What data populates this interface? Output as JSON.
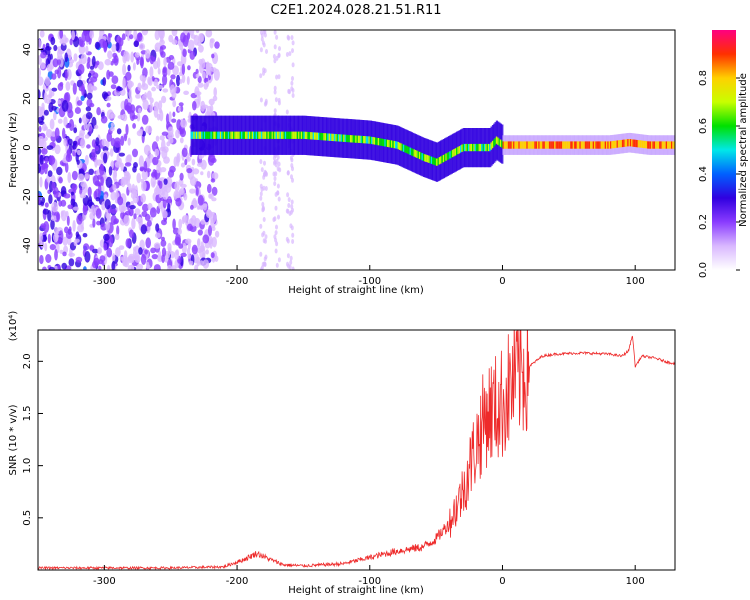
{
  "chart_data": [
    {
      "type": "heatmap",
      "title": "C2E1.2024.028.21.51.R11",
      "xlabel": "Height of straight line (km)",
      "ylabel": "Frequency (Hz)",
      "xlim": [
        -350,
        130
      ],
      "ylim": [
        -50,
        48
      ],
      "x_ticks": [
        -300,
        -200,
        -100,
        0,
        100
      ],
      "y_ticks": [
        -40,
        -20,
        0,
        20,
        40
      ],
      "colorbar": {
        "label": "Normalized spectral amplitude",
        "range": [
          0,
          1
        ],
        "ticks": [
          0.0,
          0.2,
          0.4,
          0.6,
          0.8
        ],
        "colors": [
          "#ffffff",
          "#d9b8ff",
          "#8a3cff",
          "#3000e0",
          "#0060ff",
          "#00e8e8",
          "#00e000",
          "#c8ff00",
          "#ffd000",
          "#ff3000",
          "#ff0080"
        ]
      },
      "ridge": {
        "x": [
          -235,
          -200,
          -150,
          -100,
          -80,
          -60,
          -50,
          -40,
          -30,
          -20,
          -10,
          -5,
          0,
          20,
          50,
          80,
          95,
          110,
          130
        ],
        "frequency": [
          5,
          5,
          5,
          3,
          1,
          -4,
          -6,
          -3,
          0,
          0,
          0,
          3,
          1,
          1,
          1,
          1,
          2,
          1,
          1
        ]
      },
      "diffuse_region": {
        "x": [
          -350,
          -215
        ],
        "frequency": [
          -50,
          48
        ]
      }
    },
    {
      "type": "line",
      "xlabel": "Height of straight line (km)",
      "ylabel": "SNR (10 * v/v)",
      "y_multiplier": "(x10⁴)",
      "xlim": [
        -350,
        130
      ],
      "ylim": [
        0,
        2.3
      ],
      "x_ticks": [
        -300,
        -200,
        -100,
        0,
        100
      ],
      "y_ticks": [
        0.5,
        1.0,
        1.5,
        2.0
      ],
      "color": "#ee2a2a",
      "series": [
        {
          "x": [
            -350,
            -300,
            -250,
            -210,
            -195,
            -185,
            -175,
            -165,
            -150,
            -120,
            -100,
            -80,
            -60,
            -50,
            -40,
            -30,
            -20,
            -12,
            -5,
            0,
            10,
            20,
            30,
            40,
            60,
            80,
            90,
            95,
            98,
            100,
            105,
            115,
            125,
            130
          ],
          "values": [
            0.02,
            0.02,
            0.02,
            0.03,
            0.1,
            0.16,
            0.1,
            0.05,
            0.04,
            0.06,
            0.12,
            0.18,
            0.22,
            0.3,
            0.45,
            0.75,
            1.2,
            1.5,
            1.55,
            1.6,
            1.85,
            1.95,
            2.05,
            2.07,
            2.08,
            2.07,
            2.05,
            2.1,
            2.25,
            1.95,
            2.05,
            2.03,
            1.99,
            1.98
          ]
        }
      ]
    }
  ]
}
